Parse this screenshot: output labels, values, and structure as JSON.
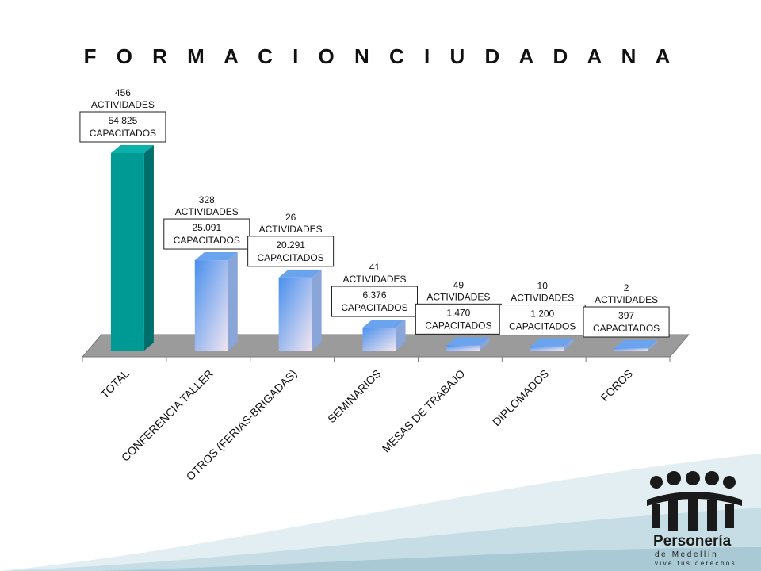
{
  "chart_data": {
    "type": "bar",
    "title": "F O R M A C I O N   C I U D A D A N A",
    "categories": [
      "TOTAL",
      "CONFERENCIA TALLER",
      "OTROS (FERIAS-BRIGADAS)",
      "SEMINARIOS",
      "MESAS DE TRABAJO",
      "DIPLOMADOS",
      "FOROS"
    ],
    "series": [
      {
        "values": [
          54825,
          25091,
          20291,
          6376,
          1470,
          1200,
          397
        ]
      }
    ],
    "capacitados_labels": [
      "54.825 CAPACITADOS",
      "25.091 CAPACITADOS",
      "20.291 CAPACITADOS",
      "6.376 CAPACITADOS",
      "1.470 CAPACITADOS",
      "1.200 CAPACITADOS",
      "397 CAPACITADOS"
    ],
    "actividades_labels": [
      "456 ACTIVIDADES",
      "328 ACTIVIDADES",
      "26 ACTIVIDADES",
      "41 ACTIVIDADES",
      "49 ACTIVIDADES",
      "10 ACTIVIDADES",
      "2 ACTIVIDADES"
    ],
    "ylim": [
      0,
      54825
    ],
    "grid": false,
    "legend": "none",
    "colors": {
      "total_front": "#009a94",
      "total_side": "#006e6a",
      "bar_light": "#f3e6f0",
      "bar_dark": "#4a90ee",
      "floor": "#9b9b9b"
    }
  },
  "logo": {
    "brand": "Personería",
    "city": "de Medellín",
    "tagline": "vive tus derechos"
  }
}
